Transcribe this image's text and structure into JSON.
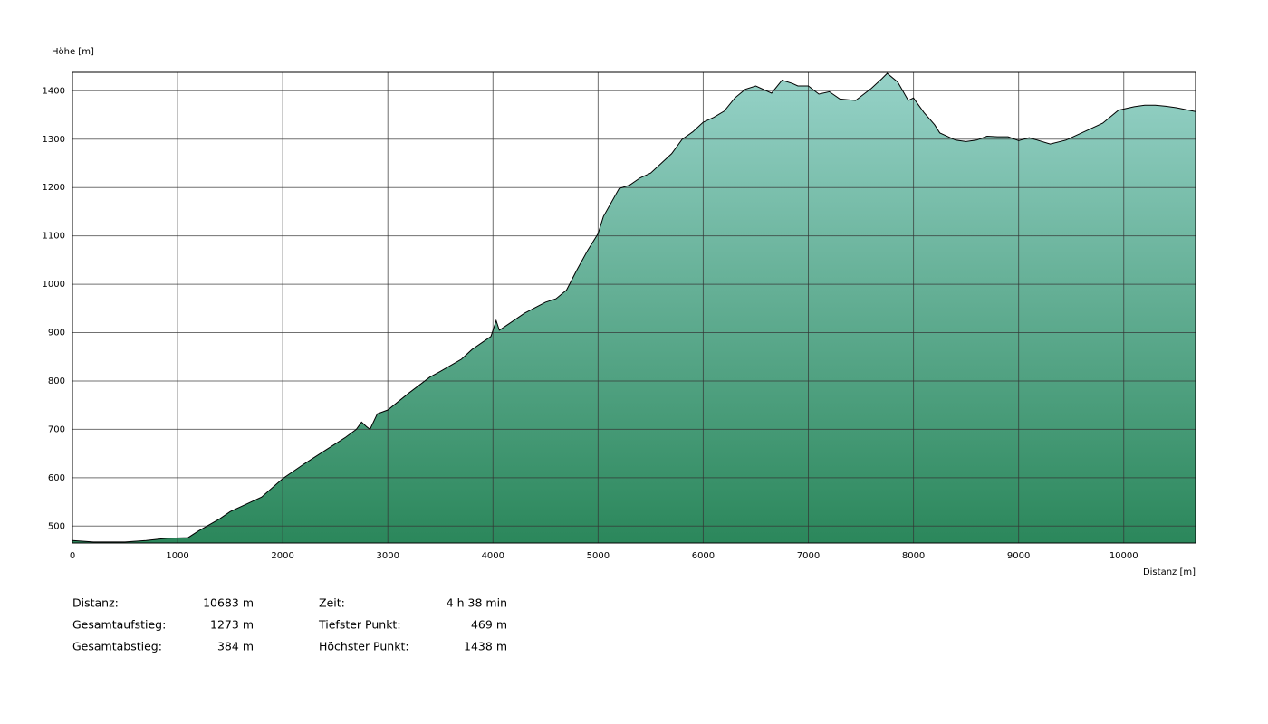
{
  "chart_data": {
    "type": "area",
    "y_label": "Höhe [m]",
    "x_label": "Distanz [m]",
    "x": [
      0,
      200,
      500,
      700,
      900,
      1100,
      1200,
      1400,
      1500,
      1600,
      1800,
      2000,
      2200,
      2400,
      2600,
      2700,
      2750,
      2800,
      2830,
      2900,
      3000,
      3200,
      3400,
      3500,
      3700,
      3800,
      3900,
      3980,
      4030,
      4060,
      4150,
      4300,
      4500,
      4600,
      4700,
      4800,
      4900,
      5000,
      5050,
      5200,
      5300,
      5400,
      5500,
      5600,
      5700,
      5800,
      5900,
      6000,
      6100,
      6200,
      6300,
      6400,
      6500,
      6650,
      6750,
      6850,
      6900,
      7000,
      7100,
      7200,
      7300,
      7450,
      7600,
      7700,
      7750,
      7850,
      7950,
      8000,
      8100,
      8200,
      8250,
      8400,
      8500,
      8600,
      8700,
      8800,
      8900,
      9000,
      9100,
      9300,
      9450,
      9600,
      9800,
      9950,
      10100,
      10200,
      10300,
      10400,
      10500,
      10683
    ],
    "values": [
      470,
      467,
      467,
      470,
      475,
      476,
      490,
      515,
      530,
      540,
      560,
      598,
      628,
      656,
      684,
      700,
      715,
      705,
      700,
      732,
      740,
      775,
      808,
      820,
      845,
      865,
      880,
      892,
      925,
      905,
      918,
      940,
      963,
      970,
      988,
      1030,
      1070,
      1105,
      1140,
      1198,
      1205,
      1220,
      1230,
      1250,
      1270,
      1300,
      1315,
      1335,
      1345,
      1358,
      1385,
      1403,
      1410,
      1395,
      1422,
      1415,
      1410,
      1410,
      1393,
      1398,
      1383,
      1380,
      1405,
      1425,
      1436,
      1418,
      1380,
      1385,
      1355,
      1330,
      1313,
      1298,
      1295,
      1298,
      1306,
      1305,
      1305,
      1297,
      1303,
      1290,
      1298,
      1313,
      1333,
      1360,
      1367,
      1370,
      1370,
      1368,
      1365,
      1357
    ],
    "xlim": [
      0,
      10683
    ],
    "ylim": [
      465,
      1438
    ],
    "xticks": [
      0,
      1000,
      2000,
      3000,
      4000,
      5000,
      6000,
      7000,
      8000,
      9000,
      10000
    ],
    "yticks": [
      500,
      600,
      700,
      800,
      900,
      1000,
      1100,
      1200,
      1300,
      1400
    ],
    "grid": true,
    "color_top": "#96d2c8",
    "color_bottom": "#2b875b",
    "line_color": "#000000"
  },
  "stats": [
    [
      {
        "label": "Distanz:",
        "value": "10683 m"
      },
      {
        "label": "Zeit:",
        "value": "4 h 38 min"
      }
    ],
    [
      {
        "label": "Gesamtaufstieg:",
        "value": "1273 m"
      },
      {
        "label": "Tiefster Punkt:",
        "value": "469 m"
      }
    ],
    [
      {
        "label": "Gesamtabstieg:",
        "value": "384 m"
      },
      {
        "label": "Höchster Punkt:",
        "value": "1438 m"
      }
    ]
  ]
}
